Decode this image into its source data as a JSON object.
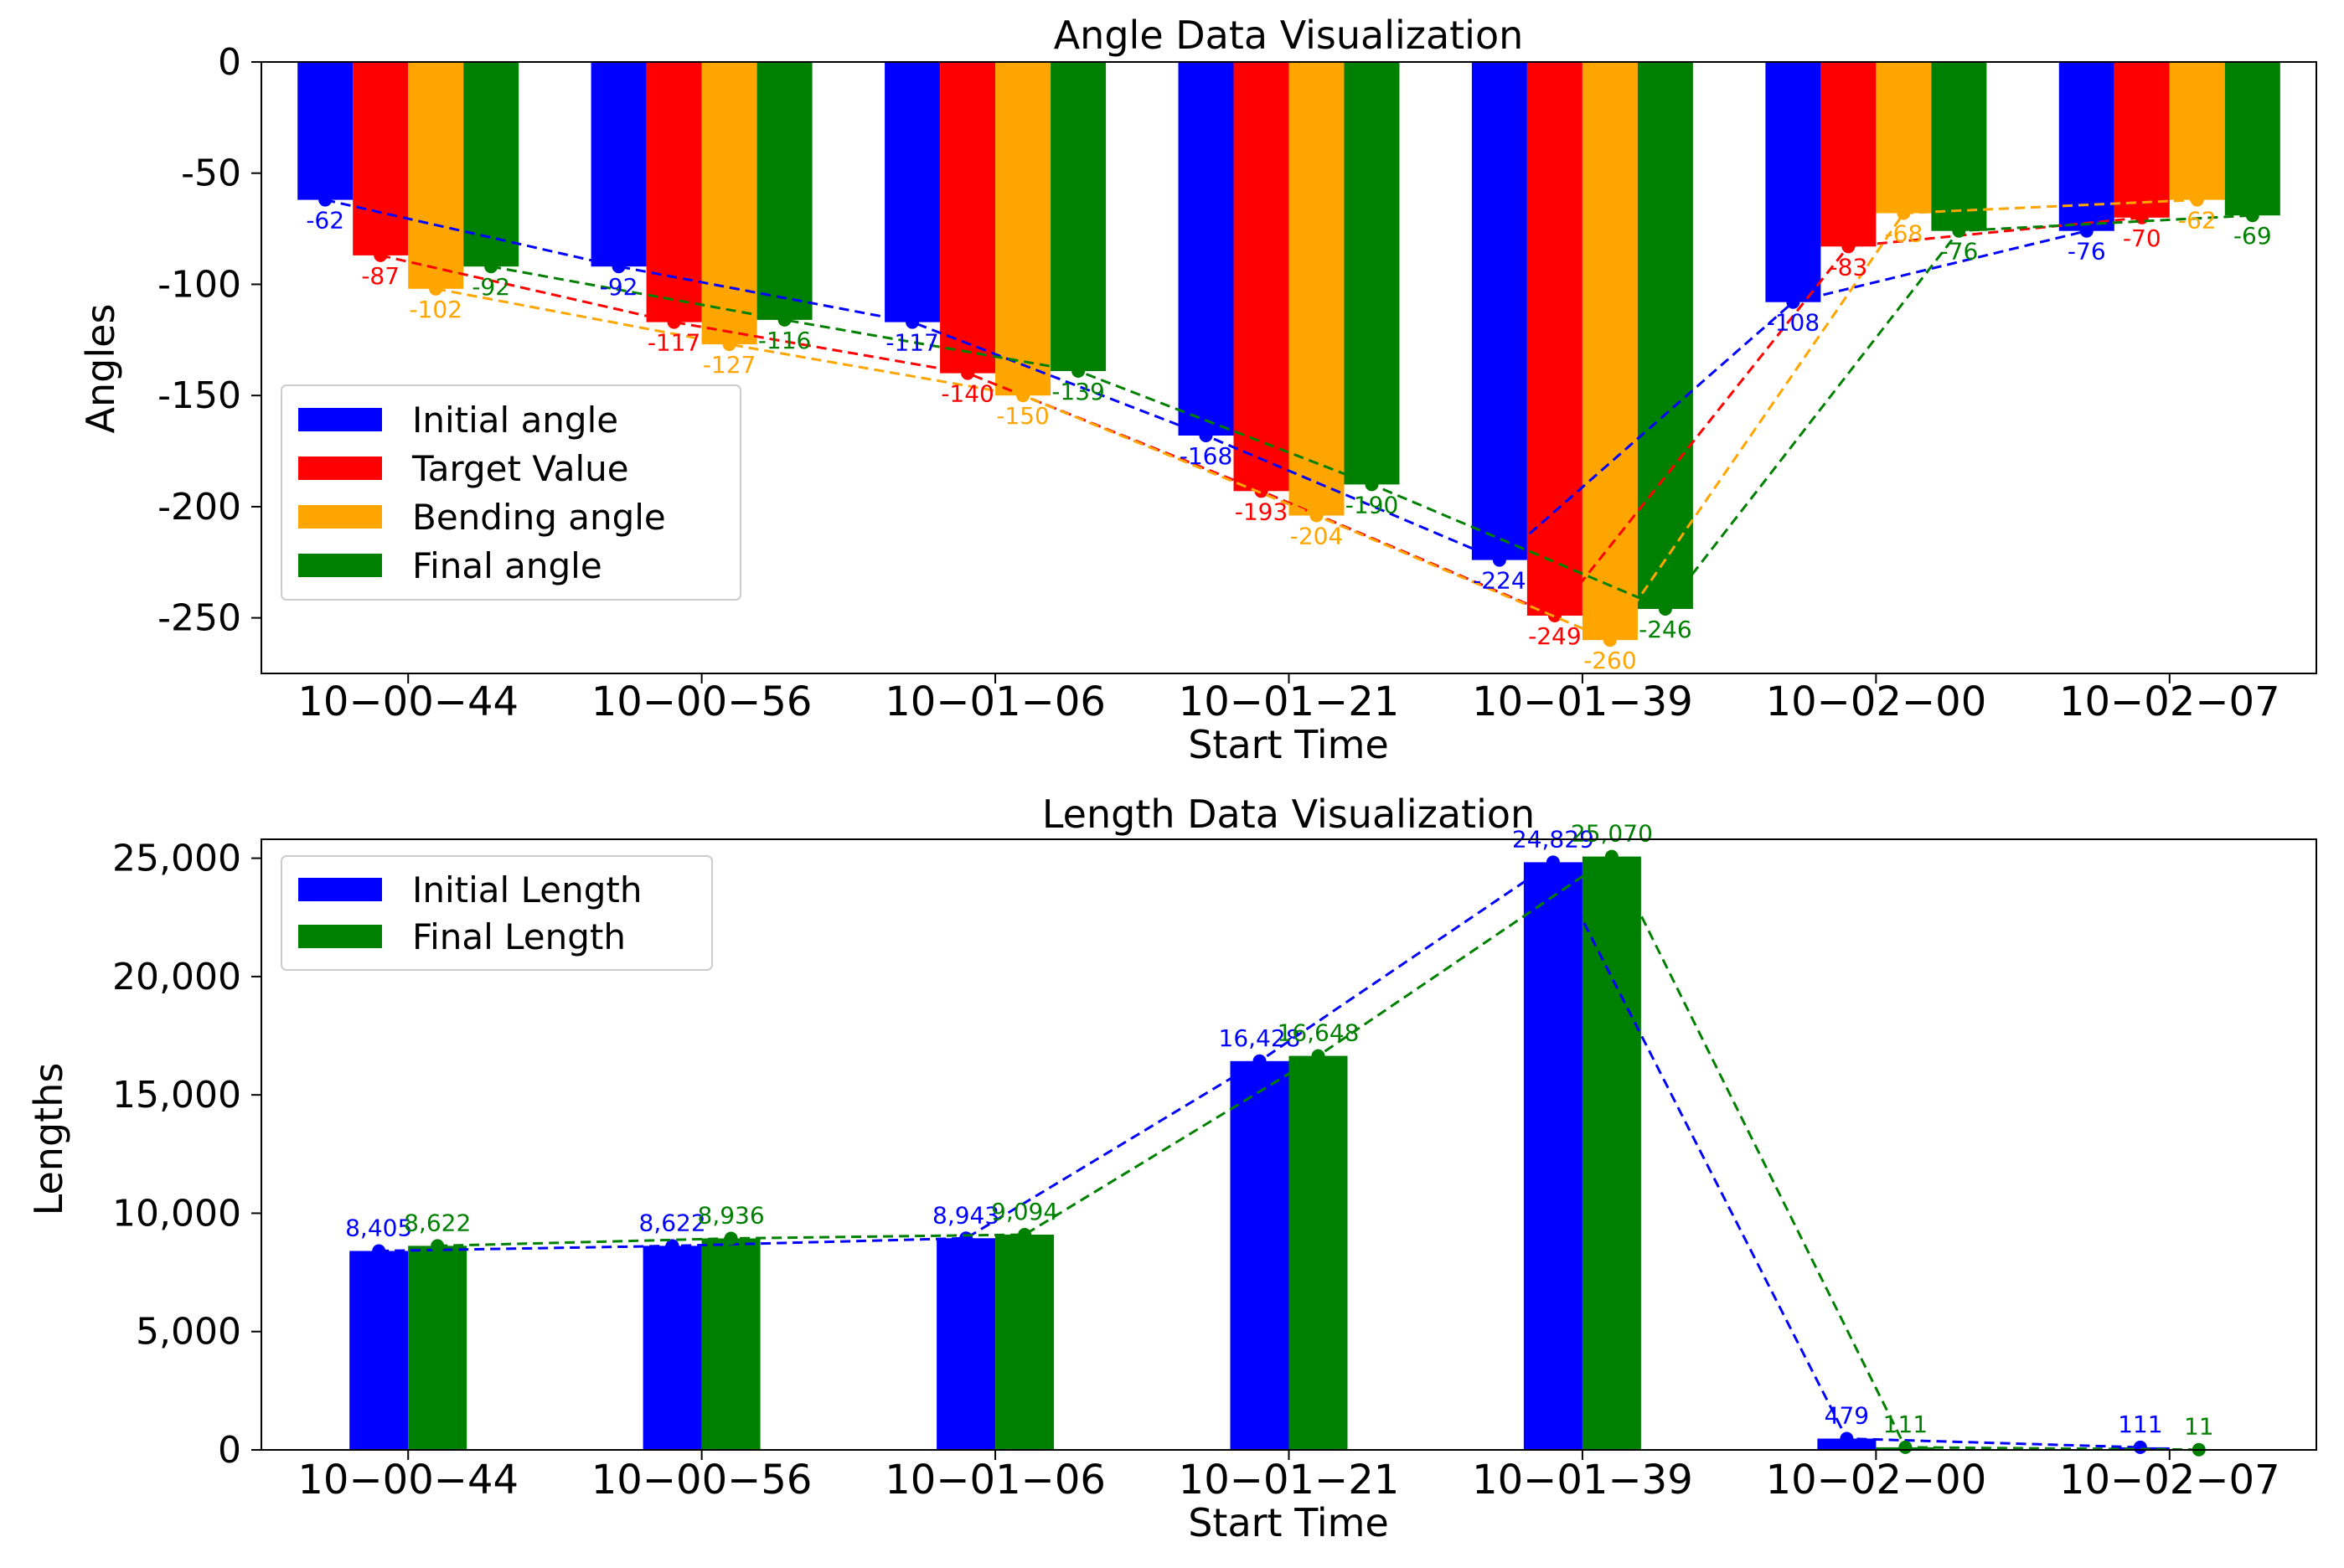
{
  "chart_data": [
    {
      "type": "bar",
      "title": "Angle Data Visualization",
      "xlabel": "Start Time",
      "ylabel": "Angles",
      "categories": [
        "10−00−44",
        "10−00−56",
        "10−01−06",
        "10−01−21",
        "10−01−39",
        "10−02−00",
        "10−02−07"
      ],
      "ylim": [
        -275,
        0
      ],
      "yticks": [
        0,
        -50,
        -100,
        -150,
        -200,
        -250
      ],
      "ytick_labels": [
        "0",
        "-50",
        "-100",
        "-150",
        "-200",
        "-250"
      ],
      "legend_location": "center-left",
      "series": [
        {
          "name": "Initial angle",
          "color": "#0000ff",
          "values": [
            -62,
            -92,
            -117,
            -168,
            -224,
            -108,
            -76
          ],
          "labels": [
            "-62",
            "-92",
            "-117",
            "-168",
            "-224",
            "-108",
            "-76"
          ]
        },
        {
          "name": "Target Value",
          "color": "#ff0000",
          "values": [
            -87,
            -117,
            -140,
            -193,
            -249,
            -83,
            -70
          ],
          "labels": [
            "-87",
            "-117",
            "-140",
            "-193",
            "-249",
            "-83",
            "-70"
          ]
        },
        {
          "name": "Bending angle",
          "color": "#ffa500",
          "values": [
            -102,
            -127,
            -150,
            -204,
            -260,
            -68,
            -62
          ],
          "labels": [
            "-102",
            "-127",
            "-150",
            "-204",
            "-260",
            "-68",
            "-62"
          ]
        },
        {
          "name": "Final angle",
          "color": "#008000",
          "values": [
            -92,
            -116,
            -139,
            -190,
            -246,
            -76,
            -69
          ],
          "labels": [
            "-92",
            "-116",
            "-139",
            "-190",
            "-246",
            "-76",
            "-69"
          ]
        }
      ]
    },
    {
      "type": "bar",
      "title": "Length Data Visualization",
      "xlabel": "Start Time",
      "ylabel": "Lengths",
      "categories": [
        "10−00−44",
        "10−00−56",
        "10−01−06",
        "10−01−21",
        "10−01−39",
        "10−02−00",
        "10−02−07"
      ],
      "ylim": [
        0,
        25800
      ],
      "yticks": [
        0,
        5000,
        10000,
        15000,
        20000,
        25000
      ],
      "ytick_labels": [
        "0",
        "5,000",
        "10,000",
        "15,000",
        "20,000",
        "25,000"
      ],
      "legend_location": "top-left",
      "series": [
        {
          "name": "Initial Length",
          "color": "#0000ff",
          "values": [
            8405,
            8622,
            8943,
            16428,
            24829,
            479,
            111
          ],
          "labels": [
            "8,405",
            "8,622",
            "8,943",
            "16,428",
            "24,829",
            "479",
            "111"
          ]
        },
        {
          "name": "Final Length",
          "color": "#008000",
          "values": [
            8622,
            8936,
            9094,
            16648,
            25070,
            111,
            11
          ],
          "labels": [
            "8,622",
            "8,936",
            "9,094",
            "16,648",
            "25,070",
            "111",
            "11"
          ]
        }
      ]
    }
  ]
}
